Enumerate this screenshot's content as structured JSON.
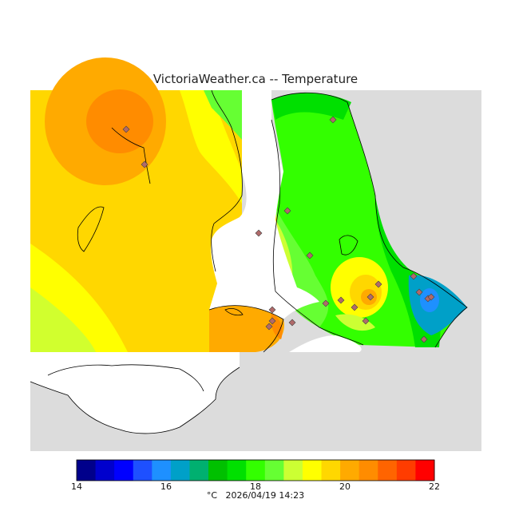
{
  "map": {
    "title": "VictoriaWeather.ca -- Temperature",
    "variable": "Temperature",
    "unit": "°C",
    "timestamp": "2026/04/19 14:23",
    "background_land_color": "#dcdcdc",
    "water_color": "#ffffff"
  },
  "legend": {
    "colors": [
      "#00008b",
      "#0000cd",
      "#0000ff",
      "#1e50ff",
      "#1e90ff",
      "#00a0c8",
      "#00b070",
      "#00c000",
      "#00e000",
      "#33ff00",
      "#66ff33",
      "#ccff33",
      "#ffff00",
      "#ffd700",
      "#ffaa00",
      "#ff8c00",
      "#ff6400",
      "#ff3c00",
      "#ff0000"
    ],
    "tick_labels": [
      "14",
      "16",
      "18",
      "20",
      "22"
    ],
    "caption": "°C   2026/04/19 14:23"
  },
  "stations": {
    "count_shown": 26,
    "symbol": "diamond-icon"
  }
}
